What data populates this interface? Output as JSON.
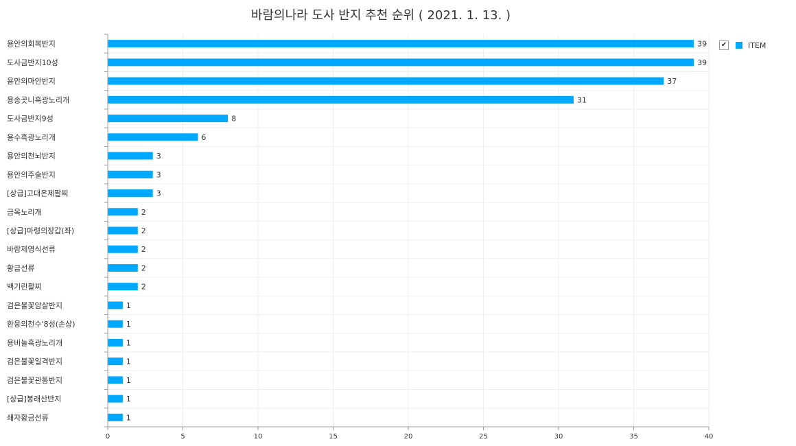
{
  "chart_data": {
    "type": "bar",
    "orientation": "horizontal",
    "title": "바람의나라 도사 반지 추천 순위 ( 2021. 1. 13. )",
    "categories": [
      "용안의회복반지",
      "도사금반지10성",
      "용안의마안반지",
      "용송곳니흑광노리개",
      "도사금반지9성",
      "용수흑광노리개",
      "용안의천뇌반지",
      "용안의주술반지",
      "[상급]고대은제팔찌",
      "금옥노리개",
      "[상급]마령의장갑(좌)",
      "바람제영식선류",
      "황금선류",
      "백기린팔찌",
      "검은불꽃암살반지",
      "환웅의천수'8성(손상)",
      "용비늘흑광노리개",
      "검은불꽃일격반지",
      "검은불꽃관통반지",
      "[상급]봉래산반지",
      "쇄자황금선류"
    ],
    "series": [
      {
        "name": "ITEM",
        "values": [
          39,
          39,
          37,
          31,
          8,
          6,
          3,
          3,
          3,
          2,
          2,
          2,
          2,
          2,
          1,
          1,
          1,
          1,
          1,
          1,
          1
        ]
      }
    ],
    "xlim": [
      0,
      40
    ],
    "xticks": [
      0,
      5,
      10,
      15,
      20,
      25,
      30,
      35,
      40
    ],
    "grid": true,
    "legend_position": "top-right",
    "bar_color": "#00a8ff"
  },
  "legend": {
    "checked_glyph": "✔"
  }
}
